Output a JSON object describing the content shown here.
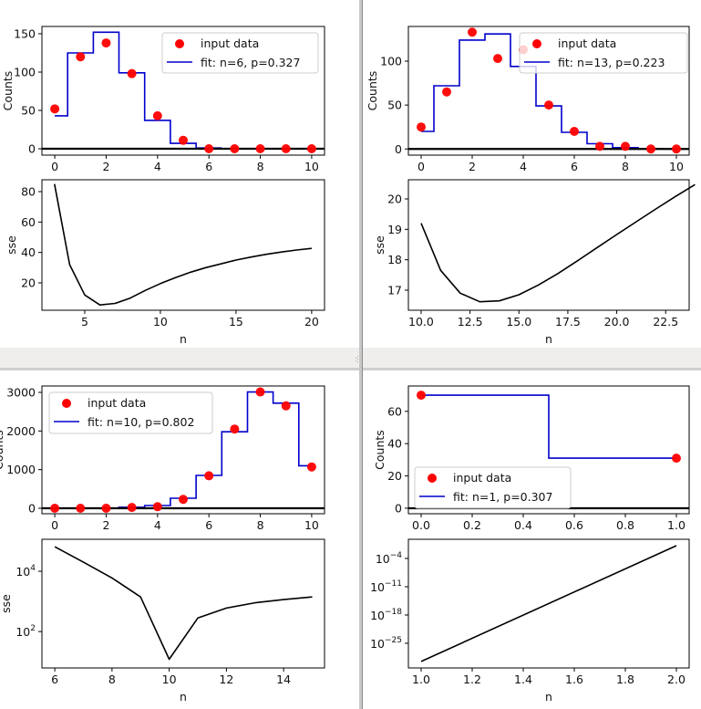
{
  "windows": [
    {
      "name": "fit-window-top-left"
    },
    {
      "name": "fit-window-top-right"
    },
    {
      "name": "fit-window-bottom-left"
    },
    {
      "name": "fit-window-bottom-right"
    }
  ],
  "colors": {
    "points": "#ff0000",
    "fit": "#0000cc",
    "sse": "#000000",
    "baseline": "#000000",
    "separator": "#efeeec"
  },
  "chart_data": [
    {
      "id": "tl-fit",
      "type": "scatter",
      "xlabel": "",
      "ylabel": "Counts",
      "xlim": [
        -0.5,
        10.5
      ],
      "ylim": [
        -8.3,
        159.5
      ],
      "ylog": false,
      "xticks": [
        0,
        2,
        4,
        6,
        8,
        10
      ],
      "xticklabels": [
        "0",
        "2",
        "4",
        "6",
        "8",
        "10"
      ],
      "yticks": [
        0,
        50,
        100,
        150
      ],
      "yticklabels": [
        "0",
        "50",
        "100",
        "150"
      ],
      "points": {
        "name": "input data",
        "x": [
          0,
          1,
          2,
          3,
          4,
          5,
          6,
          7,
          8,
          9,
          10
        ],
        "y": [
          52,
          120,
          138,
          98,
          43,
          11,
          0,
          0,
          0,
          0,
          0
        ]
      },
      "fit": {
        "name": "fit: n=6, p=0.327",
        "edges": [
          0,
          0.5,
          1.5,
          2.5,
          3.5,
          4.5,
          5.5,
          6.5
        ],
        "levels": [
          43,
          125,
          152,
          99,
          37,
          7,
          1
        ]
      },
      "baseline": 0,
      "legend": "upper right"
    },
    {
      "id": "tl-sse",
      "type": "line",
      "xlabel": "n",
      "ylabel": "sse",
      "xlim": [
        2.17,
        20.85
      ],
      "ylim": [
        2,
        87.8
      ],
      "ylog": false,
      "xticks": [
        5,
        10,
        15,
        20
      ],
      "xticklabels": [
        "5",
        "10",
        "15",
        "20"
      ],
      "yticks": [
        20,
        40,
        60,
        80
      ],
      "yticklabels": [
        "20",
        "40",
        "60",
        "80"
      ],
      "line": {
        "x": [
          3,
          4,
          5,
          6,
          7,
          8,
          9,
          10,
          11,
          12,
          13,
          14,
          15,
          16,
          17,
          18,
          19,
          20
        ],
        "y": [
          85,
          32,
          12,
          5.5,
          6.5,
          10,
          15,
          19.5,
          23.5,
          27,
          30,
          32.5,
          35,
          37,
          38.8,
          40.3,
          41.6,
          42.7
        ]
      }
    },
    {
      "id": "tr-fit",
      "type": "scatter",
      "xlabel": "",
      "ylabel": "Counts",
      "xlim": [
        -0.5,
        10.5
      ],
      "ylim": [
        -7,
        139.5
      ],
      "ylog": false,
      "xticks": [
        0,
        2,
        4,
        6,
        8,
        10
      ],
      "xticklabels": [
        "0",
        "2",
        "4",
        "6",
        "8",
        "10"
      ],
      "yticks": [
        0,
        50,
        100
      ],
      "yticklabels": [
        "0",
        "50",
        "100"
      ],
      "points": {
        "name": "input data",
        "x": [
          0,
          1,
          2,
          3,
          4,
          5,
          6,
          7,
          8,
          9,
          10
        ],
        "y": [
          25,
          65,
          133,
          103,
          113,
          50,
          20,
          3,
          3,
          0,
          0
        ]
      },
      "fit": {
        "name": "fit: n=13, p=0.223",
        "edges": [
          0,
          0.5,
          1.5,
          2.5,
          3.5,
          4.5,
          5.5,
          6.5,
          7.5,
          8.5,
          9.5
        ],
        "levels": [
          20,
          72,
          124,
          131,
          94,
          49,
          19,
          6,
          1.5,
          0.4
        ]
      },
      "baseline": 0,
      "legend": "upper right"
    },
    {
      "id": "tr-sse",
      "type": "line",
      "xlabel": "n",
      "ylabel": "sse",
      "xlim": [
        9.35,
        23.7
      ],
      "ylim": [
        16.34,
        20.63
      ],
      "ylog": false,
      "xticks": [
        10,
        12.5,
        15,
        17.5,
        20,
        22.5
      ],
      "xticklabels": [
        "10.0",
        "12.5",
        "15.0",
        "17.5",
        "20.0",
        "22.5"
      ],
      "yticks": [
        17,
        18,
        19,
        20
      ],
      "yticklabels": [
        "17",
        "18",
        "19",
        "20"
      ],
      "line": {
        "x": [
          10,
          11,
          12,
          13,
          14,
          15,
          16,
          17,
          18,
          19,
          20,
          21,
          22,
          23,
          24
        ],
        "y": [
          19.2,
          17.65,
          16.9,
          16.62,
          16.65,
          16.85,
          17.17,
          17.55,
          17.97,
          18.4,
          18.83,
          19.25,
          19.67,
          20.08,
          20.47
        ]
      }
    },
    {
      "id": "bl-fit",
      "type": "scatter",
      "xlabel": "",
      "ylabel": "Counts",
      "xlim": [
        -0.5,
        10.5
      ],
      "ylim": [
        -142,
        3165
      ],
      "ylog": false,
      "xticks": [
        0,
        2,
        4,
        6,
        8,
        10
      ],
      "xticklabels": [
        "0",
        "2",
        "4",
        "6",
        "8",
        "10"
      ],
      "yticks": [
        0,
        1000,
        2000,
        3000
      ],
      "yticklabels": [
        "0",
        "1000",
        "2000",
        "3000"
      ],
      "points": {
        "name": "input data",
        "x": [
          0,
          1,
          2,
          3,
          4,
          5,
          6,
          7,
          8,
          9,
          10
        ],
        "y": [
          0,
          0,
          0,
          20,
          40,
          230,
          840,
          2050,
          3010,
          2650,
          1070
        ]
      },
      "fit": {
        "name": "fit: n=10, p=0.802",
        "edges": [
          0,
          0.5,
          1.5,
          2.5,
          3.5,
          4.5,
          5.5,
          6.5,
          7.5,
          8.5,
          9.5,
          10
        ],
        "levels": [
          0,
          0,
          1,
          25,
          70,
          260,
          850,
          1980,
          3010,
          2720,
          1100
        ]
      },
      "baseline": 0,
      "legend": "upper left"
    },
    {
      "id": "bl-sse",
      "type": "line",
      "xlabel": "n",
      "ylabel": "sse",
      "xlim": [
        5.55,
        15.43
      ],
      "ylim": [
        6.2,
        115000
      ],
      "ylog": true,
      "xticks": [
        6,
        8,
        10,
        12,
        14
      ],
      "xticklabels": [
        "6",
        "8",
        "10",
        "12",
        "14"
      ],
      "yticks": [
        100,
        10000
      ],
      "ytick_exponents": [
        "2",
        "4"
      ],
      "line": {
        "x": [
          6,
          7,
          8,
          9,
          10,
          11,
          12,
          13,
          14,
          15
        ],
        "y": [
          65000,
          20000,
          6000,
          1400,
          12,
          280,
          600,
          900,
          1150,
          1400
        ]
      }
    },
    {
      "id": "br-fit",
      "type": "scatter",
      "xlabel": "",
      "ylabel": "Counts",
      "xlim": [
        -0.05,
        1.05
      ],
      "ylim": [
        -3.4,
        75.7
      ],
      "ylog": false,
      "xticks": [
        0,
        0.2,
        0.4,
        0.6,
        0.8,
        1.0
      ],
      "xticklabels": [
        "0.0",
        "0.2",
        "0.4",
        "0.6",
        "0.8",
        "1.0"
      ],
      "yticks": [
        0,
        20,
        40,
        60
      ],
      "yticklabels": [
        "0",
        "20",
        "40",
        "60"
      ],
      "points": {
        "name": "input data",
        "x": [
          0,
          1
        ],
        "y": [
          70,
          31
        ]
      },
      "fit": {
        "name": "fit: n=1, p=0.307",
        "edges": [
          0,
          0.5,
          1
        ],
        "levels": [
          70,
          31
        ]
      },
      "baseline": 0,
      "legend": "lower left"
    },
    {
      "id": "br-sse",
      "type": "line",
      "xlabel": "n",
      "ylabel": "",
      "xlim": [
        0.95,
        2.05
      ],
      "ylim": [
        7.9e-32,
        5.5
      ],
      "ylog": true,
      "xticks": [
        1.0,
        1.2,
        1.4,
        1.6,
        1.8,
        2.0
      ],
      "xticklabels": [
        "1.0",
        "1.2",
        "1.4",
        "1.6",
        "1.8",
        "2.0"
      ],
      "yticks": [
        1e-25,
        1e-18,
        1e-11,
        0.0001
      ],
      "ytick_exponents": [
        "−25",
        "−18",
        "−11",
        "−4"
      ],
      "line": {
        "x": [
          1,
          2
        ],
        "y": [
          3.2e-30,
          0.145
        ]
      }
    }
  ]
}
